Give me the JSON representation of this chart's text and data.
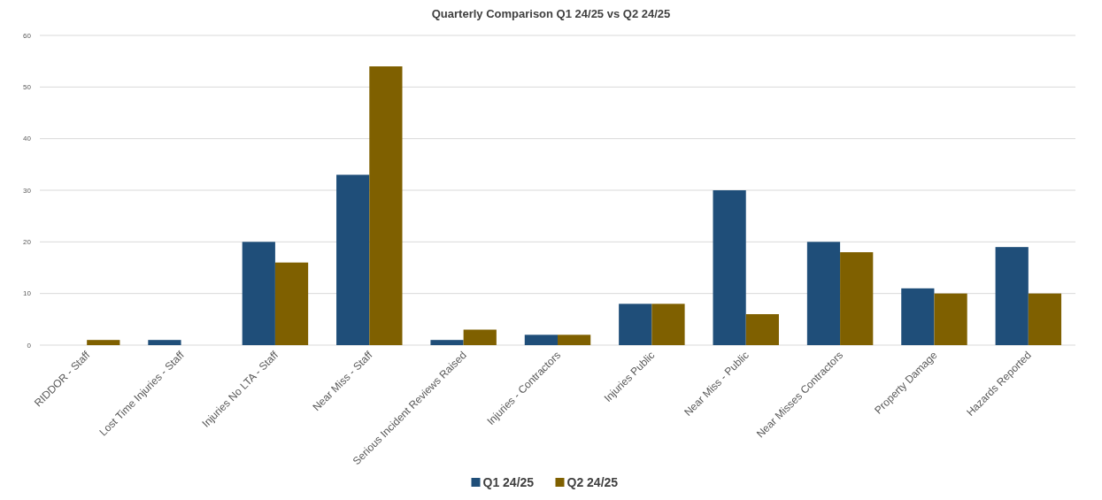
{
  "chart_data": {
    "type": "bar",
    "title": "Quarterly Comparison Q1 24/25 vs Q2 24/25",
    "categories": [
      "RIDDOR - Staff",
      "Lost Time Injuries - Staff",
      "Injuries No LTA - Staff",
      "Near Miss - Staff",
      "Serious Incident Reviews Raised",
      "Injuries - Contractors",
      "Injuries Public",
      "Near Miss - Public",
      "Near Misses Contractors",
      "Property Damage",
      "Hazards Reported"
    ],
    "series": [
      {
        "name": "Q1 24/25",
        "color": "#1f4e79",
        "values": [
          0,
          1,
          20,
          33,
          1,
          2,
          8,
          30,
          20,
          11,
          19
        ]
      },
      {
        "name": "Q2 24/25",
        "color": "#7f6000",
        "values": [
          1,
          0,
          16,
          54,
          3,
          2,
          8,
          6,
          18,
          10,
          10
        ]
      }
    ],
    "ylim": [
      0,
      60
    ],
    "yticks": [
      0,
      10,
      20,
      30,
      40,
      50,
      60
    ],
    "grid": "y",
    "legend": "bottom"
  }
}
